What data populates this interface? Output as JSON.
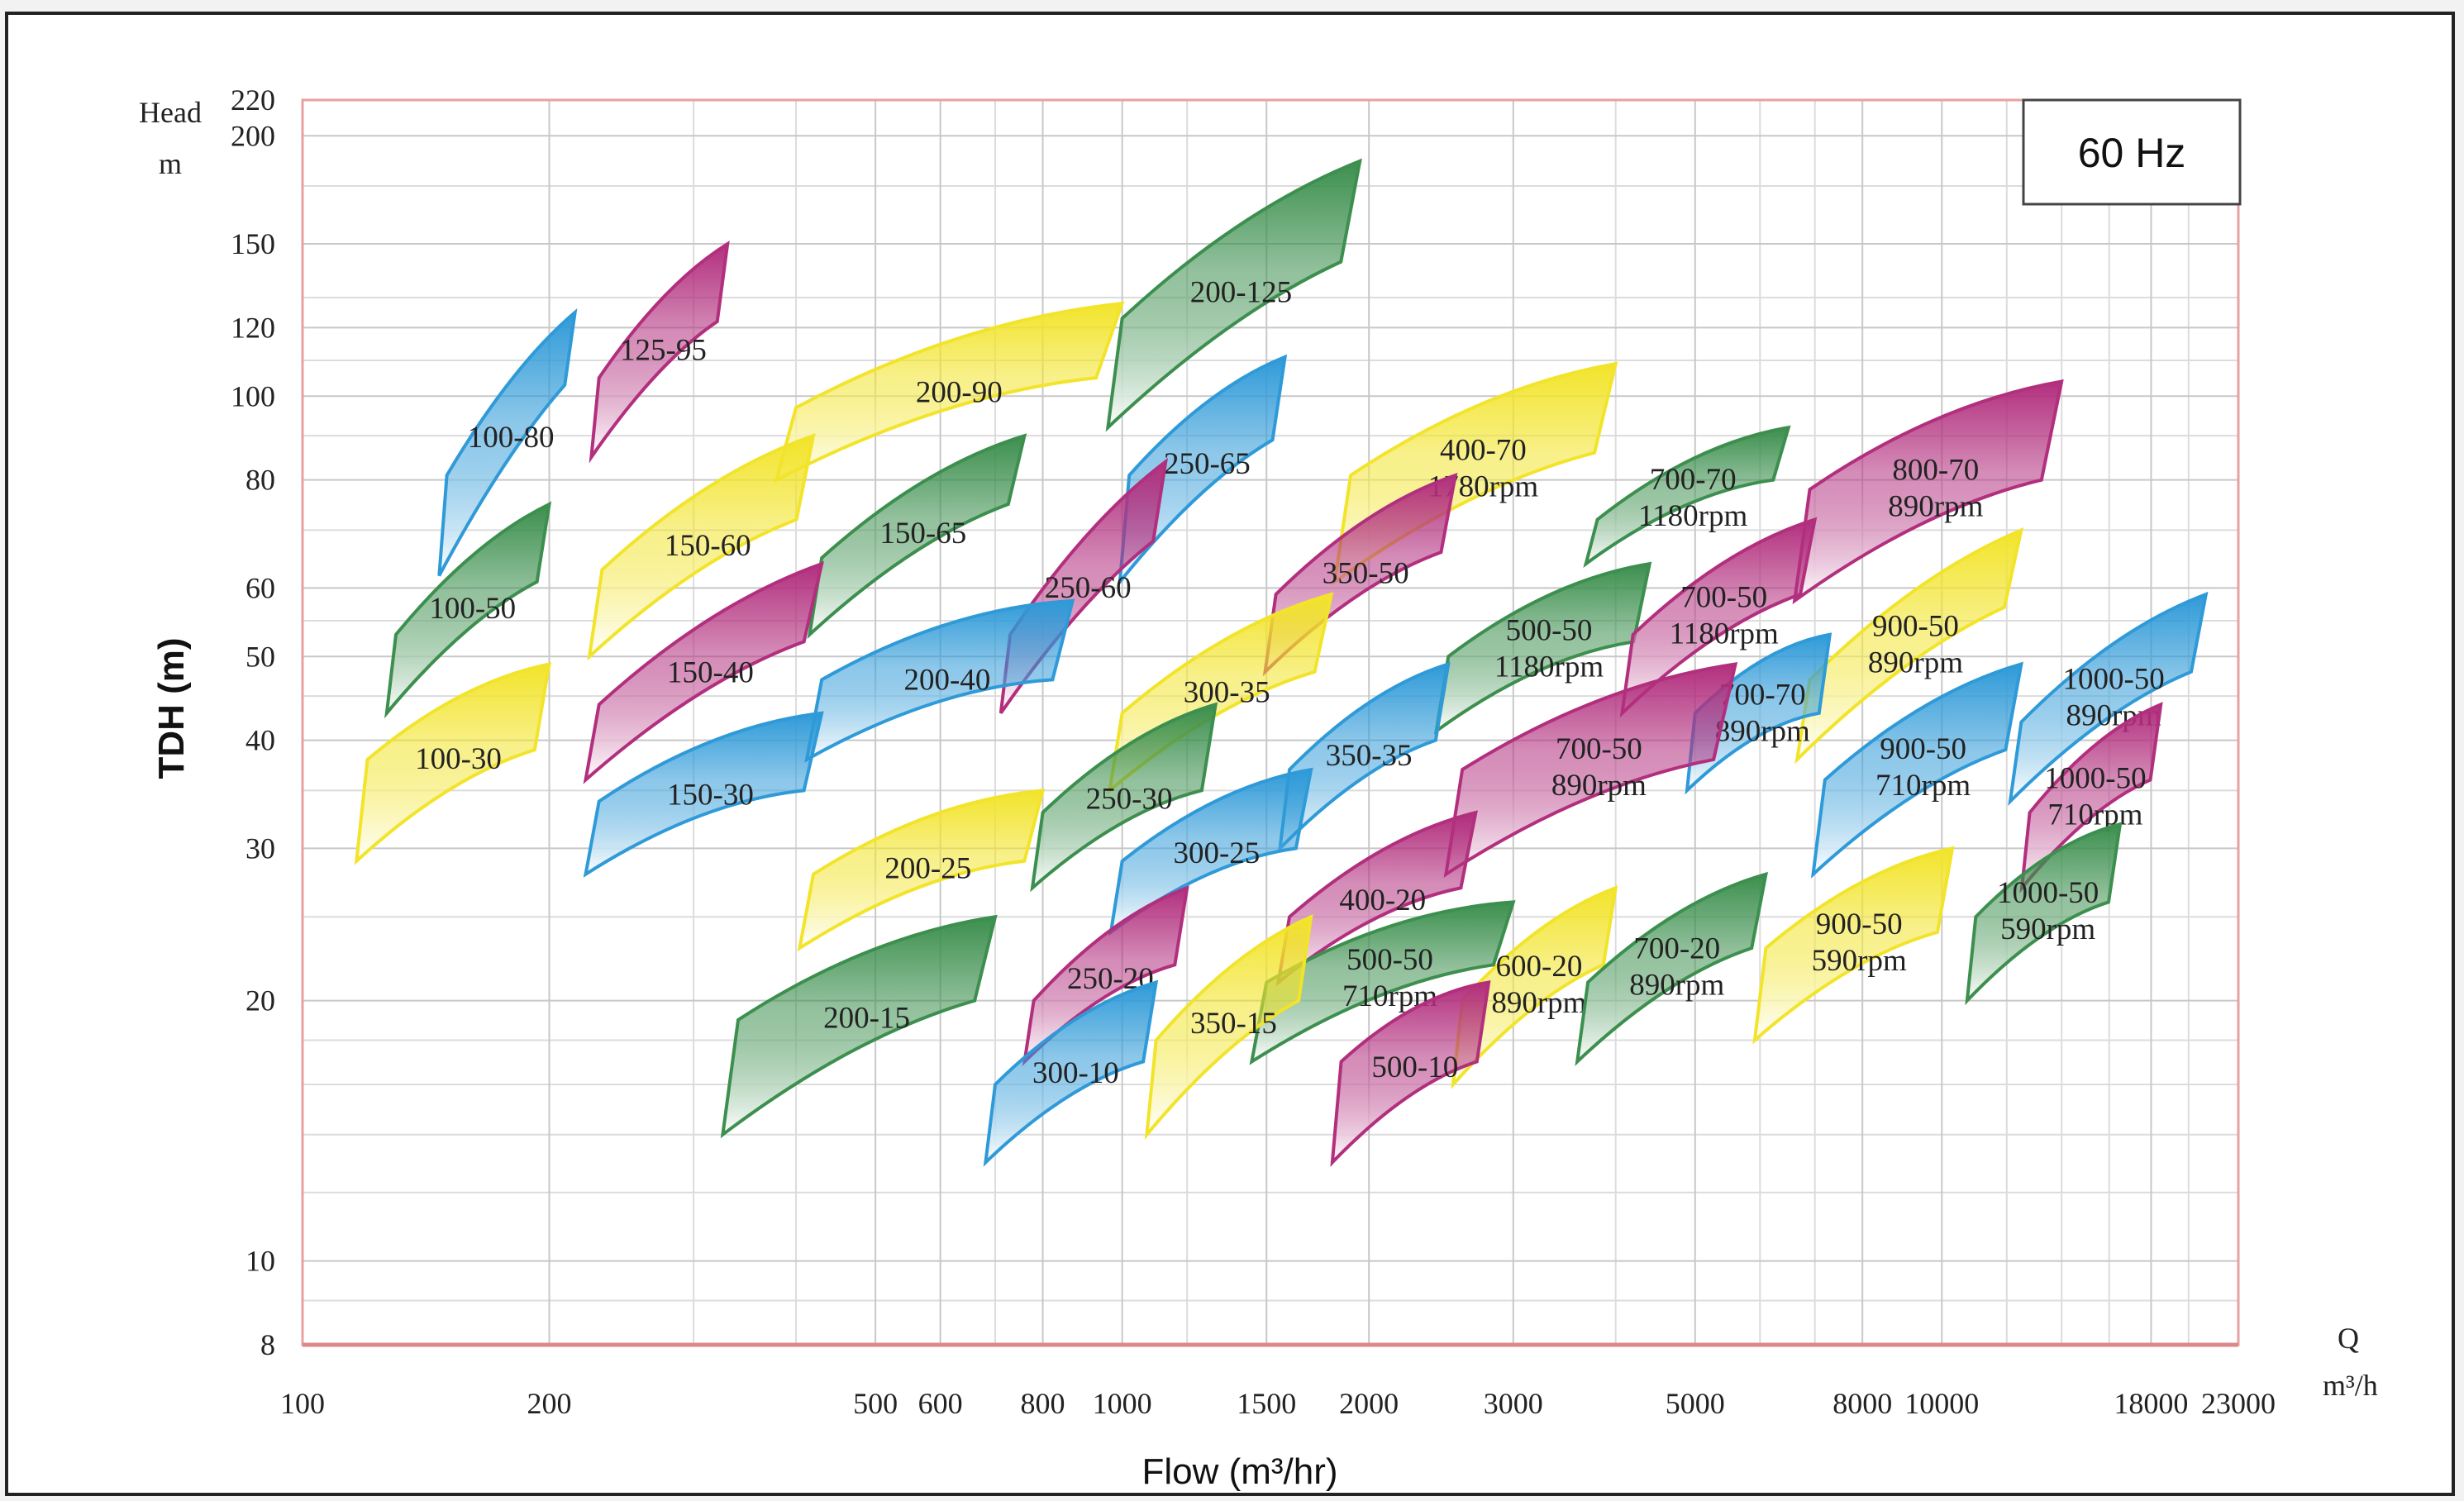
{
  "chart_data": {
    "type": "area",
    "freq_label": "60 Hz",
    "ylabel": "TDH (m)",
    "ylabel_top": [
      "Head",
      "m"
    ],
    "xlabel": "Flow (m³/hr)",
    "xunit": [
      "Q",
      "m³/h"
    ],
    "x_scale": "log",
    "y_scale": "log",
    "xlim": [
      100,
      23000
    ],
    "ylim": [
      8,
      220
    ],
    "x_ticks": [
      {
        "v": 100,
        "t": "100"
      },
      {
        "v": 200,
        "t": "200"
      },
      {
        "v": 500,
        "t": "500"
      },
      {
        "v": 600,
        "t": "600"
      },
      {
        "v": 800,
        "t": "800"
      },
      {
        "v": 1000,
        "t": "1000"
      },
      {
        "v": 1500,
        "t": "1500"
      },
      {
        "v": 2000,
        "t": "2000"
      },
      {
        "v": 3000,
        "t": "3000"
      },
      {
        "v": 5000,
        "t": "5000"
      },
      {
        "v": 8000,
        "t": "8000"
      },
      {
        "v": 10000,
        "t": "10000"
      },
      {
        "v": 18000,
        "t": "18000"
      },
      {
        "v": 23000,
        "t": "23000"
      }
    ],
    "y_ticks": [
      {
        "v": 8,
        "t": "8"
      },
      {
        "v": 10,
        "t": "10"
      },
      {
        "v": 20,
        "t": "20"
      },
      {
        "v": 30,
        "t": "30"
      },
      {
        "v": 40,
        "t": "40"
      },
      {
        "v": 50,
        "t": "50"
      },
      {
        "v": 60,
        "t": "60"
      },
      {
        "v": 80,
        "t": "80"
      },
      {
        "v": 100,
        "t": "100"
      },
      {
        "v": 120,
        "t": "120"
      },
      {
        "v": 150,
        "t": "150"
      },
      {
        "v": 200,
        "t": "200"
      },
      {
        "v": 220,
        "t": "220"
      }
    ],
    "grid": true,
    "colors": {
      "green": "#3c8f4e",
      "pink": "#b22f7e",
      "yellow": "#f2e42a",
      "blue": "#2f9ad8"
    },
    "pumps": [
      {
        "label": [
          "100-80"
        ],
        "color": "blue",
        "q": [
          150,
          215
        ],
        "h": [
          81,
          125
        ],
        "h2": [
          62,
          103
        ]
      },
      {
        "label": [
          "125-95"
        ],
        "color": "pink",
        "q": [
          230,
          330
        ],
        "h": [
          105,
          150
        ],
        "h2": [
          85,
          122
        ]
      },
      {
        "label": [
          "200-125"
        ],
        "color": "green",
        "q": [
          1000,
          1950
        ],
        "h": [
          123,
          187
        ],
        "h2": [
          92,
          143
        ]
      },
      {
        "label": [
          "200-90"
        ],
        "color": "yellow",
        "q": [
          400,
          1000
        ],
        "h": [
          97,
          128
        ],
        "h2": [
          80,
          105
        ]
      },
      {
        "label": [
          "250-65"
        ],
        "color": "blue",
        "q": [
          1020,
          1580
        ],
        "h": [
          81,
          111
        ],
        "h2": [
          61,
          89
        ]
      },
      {
        "label": [
          "400-70",
          "1780rpm"
        ],
        "color": "yellow",
        "q": [
          1900,
          4000
        ],
        "h": [
          81,
          109
        ],
        "h2": [
          61,
          86
        ]
      },
      {
        "label": [
          "700-70",
          "1180rpm"
        ],
        "color": "green",
        "q": [
          3800,
          6500
        ],
        "h": [
          72,
          92
        ],
        "h2": [
          64,
          80
        ]
      },
      {
        "label": [
          "800-70",
          "890rpm"
        ],
        "color": "pink",
        "q": [
          6900,
          14000
        ],
        "h": [
          78,
          104
        ],
        "h2": [
          58,
          80
        ]
      },
      {
        "label": [
          "150-60"
        ],
        "color": "yellow",
        "q": [
          232,
          420
        ],
        "h": [
          63,
          90
        ],
        "h2": [
          50,
          72
        ]
      },
      {
        "label": [
          "150-65"
        ],
        "color": "green",
        "q": [
          430,
          760
        ],
        "h": [
          65,
          90
        ],
        "h2": [
          53,
          75
        ]
      },
      {
        "label": [
          "250-60"
        ],
        "color": "pink",
        "q": [
          730,
          1130
        ],
        "h": [
          53,
          84
        ],
        "h2": [
          43,
          68
        ]
      },
      {
        "label": [
          "350-50"
        ],
        "color": "pink",
        "q": [
          1540,
          2550
        ],
        "h": [
          59,
          81
        ],
        "h2": [
          48,
          66
        ]
      },
      {
        "label": [
          "100-50"
        ],
        "color": "green",
        "q": [
          130,
          200
        ],
        "h": [
          53,
          75
        ],
        "h2": [
          43,
          61
        ]
      },
      {
        "label": [
          "150-40"
        ],
        "color": "pink",
        "q": [
          230,
          430
        ],
        "h": [
          44,
          64
        ],
        "h2": [
          36,
          52
        ]
      },
      {
        "label": [
          "200-40"
        ],
        "color": "blue",
        "q": [
          430,
          870
        ],
        "h": [
          47,
          58
        ],
        "h2": [
          38,
          47
        ]
      },
      {
        "label": [
          "300-35"
        ],
        "color": "yellow",
        "q": [
          1000,
          1800
        ],
        "h": [
          43,
          59
        ],
        "h2": [
          35,
          48
        ]
      },
      {
        "label": [
          "500-50",
          "1180rpm"
        ],
        "color": "green",
        "q": [
          2500,
          4400
        ],
        "h": [
          50,
          64
        ],
        "h2": [
          41,
          52
        ]
      },
      {
        "label": [
          "700-50",
          "1180rpm"
        ],
        "color": "pink",
        "q": [
          4200,
          7000
        ],
        "h": [
          53,
          72
        ],
        "h2": [
          43,
          59
        ]
      },
      {
        "label": [
          "900-50",
          "890rpm"
        ],
        "color": "yellow",
        "q": [
          6900,
          12500
        ],
        "h": [
          47,
          70
        ],
        "h2": [
          38,
          57
        ]
      },
      {
        "label": [
          "1000-50",
          "890rpm"
        ],
        "color": "blue",
        "q": [
          12500,
          21000
        ],
        "h": [
          42,
          59
        ],
        "h2": [
          34,
          48
        ]
      },
      {
        "label": [
          "100-30"
        ],
        "color": "yellow",
        "q": [
          120,
          200
        ],
        "h": [
          38,
          49
        ],
        "h2": [
          29,
          39
        ]
      },
      {
        "label": [
          "150-30"
        ],
        "color": "blue",
        "q": [
          230,
          430
        ],
        "h": [
          34,
          43
        ],
        "h2": [
          28,
          35
        ]
      },
      {
        "label": [
          "250-30"
        ],
        "color": "green",
        "q": [
          800,
          1300
        ],
        "h": [
          33,
          44
        ],
        "h2": [
          27,
          35
        ]
      },
      {
        "label": [
          "350-35"
        ],
        "color": "blue",
        "q": [
          1600,
          2500
        ],
        "h": [
          37,
          49
        ],
        "h2": [
          30,
          40
        ]
      },
      {
        "label": [
          "700-70",
          "890rpm"
        ],
        "color": "blue",
        "q": [
          5000,
          7300
        ],
        "h": [
          43,
          53
        ],
        "h2": [
          35,
          43
        ]
      },
      {
        "label": [
          "700-50",
          "890rpm"
        ],
        "color": "pink",
        "q": [
          2600,
          5600
        ],
        "h": [
          37,
          49
        ],
        "h2": [
          28,
          38
        ]
      },
      {
        "label": [
          "900-50",
          "710rpm"
        ],
        "color": "blue",
        "q": [
          7200,
          12500
        ],
        "h": [
          36,
          49
        ],
        "h2": [
          28,
          39
        ]
      },
      {
        "label": [
          "1000-50",
          "710rpm"
        ],
        "color": "pink",
        "q": [
          12800,
          18500
        ],
        "h": [
          33,
          44
        ],
        "h2": [
          27,
          36
        ]
      },
      {
        "label": [
          "200-25"
        ],
        "color": "yellow",
        "q": [
          420,
          800
        ],
        "h": [
          28,
          35
        ],
        "h2": [
          23,
          29
        ]
      },
      {
        "label": [
          "300-25"
        ],
        "color": "blue",
        "q": [
          1000,
          1700
        ],
        "h": [
          29,
          37
        ],
        "h2": [
          24,
          30
        ]
      },
      {
        "label": [
          "400-20"
        ],
        "color": "pink",
        "q": [
          1600,
          2700
        ],
        "h": [
          25,
          33
        ],
        "h2": [
          21,
          27
        ]
      },
      {
        "label": [
          "1000-50",
          "590rpm"
        ],
        "color": "green",
        "q": [
          11000,
          16500
        ],
        "h": [
          25,
          32
        ],
        "h2": [
          20,
          26
        ]
      },
      {
        "label": [
          "900-50",
          "590rpm"
        ],
        "color": "yellow",
        "q": [
          6100,
          10300
        ],
        "h": [
          23,
          30
        ],
        "h2": [
          18,
          24
        ]
      },
      {
        "label": [
          "600-20",
          "890rpm"
        ],
        "color": "yellow",
        "q": [
          2600,
          4000
        ],
        "h": [
          20,
          27
        ],
        "h2": [
          16,
          22
        ]
      },
      {
        "label": [
          "700-20",
          "890rpm"
        ],
        "color": "green",
        "q": [
          3700,
          6100
        ],
        "h": [
          21,
          28
        ],
        "h2": [
          17,
          23
        ]
      },
      {
        "label": [
          "500-50",
          "710rpm"
        ],
        "color": "green",
        "q": [
          1500,
          3000
        ],
        "h": [
          21,
          26
        ],
        "h2": [
          17,
          22
        ]
      },
      {
        "label": [
          "250-20"
        ],
        "color": "pink",
        "q": [
          780,
          1200
        ],
        "h": [
          20,
          27
        ],
        "h2": [
          17,
          22
        ]
      },
      {
        "label": [
          "350-15"
        ],
        "color": "yellow",
        "q": [
          1100,
          1700
        ],
        "h": [
          18,
          25
        ],
        "h2": [
          14,
          20
        ]
      },
      {
        "label": [
          "200-15"
        ],
        "color": "green",
        "q": [
          340,
          700
        ],
        "h": [
          19,
          25
        ],
        "h2": [
          14,
          20
        ]
      },
      {
        "label": [
          "300-10"
        ],
        "color": "blue",
        "q": [
          700,
          1100
        ],
        "h": [
          16,
          21
        ],
        "h2": [
          13,
          17
        ]
      },
      {
        "label": [
          "500-10"
        ],
        "color": "pink",
        "q": [
          1850,
          2800
        ],
        "h": [
          17,
          21
        ],
        "h2": [
          13,
          17
        ]
      }
    ]
  }
}
